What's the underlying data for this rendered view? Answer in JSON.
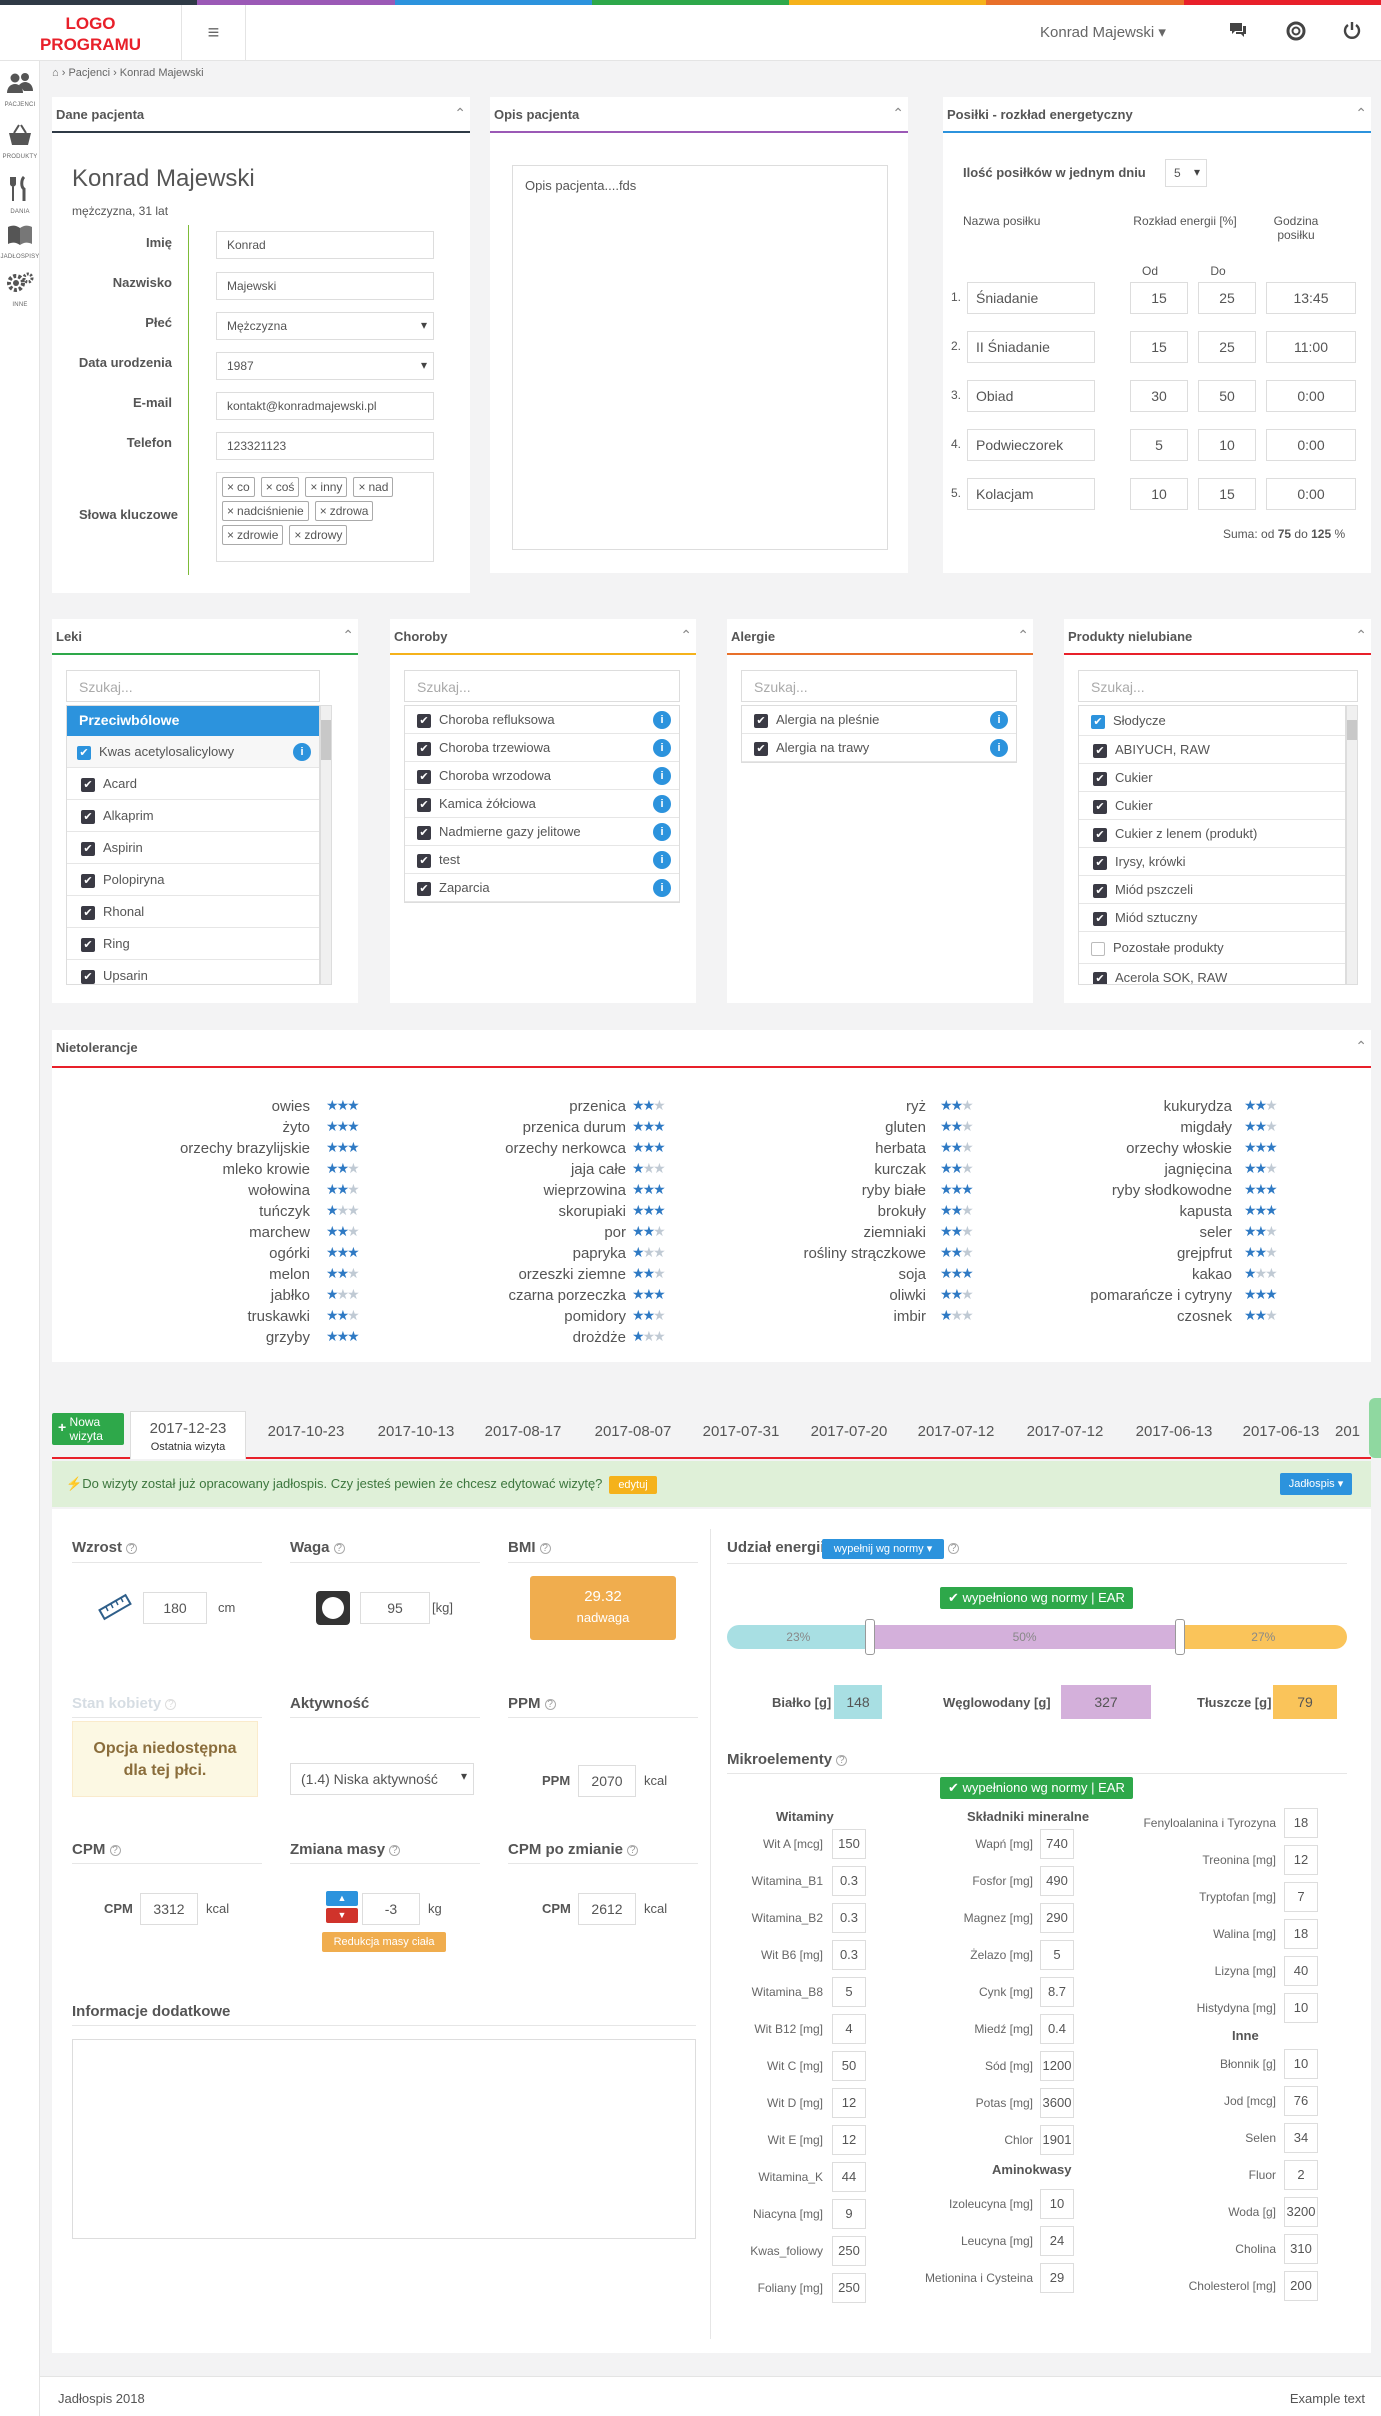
{
  "header": {
    "logo": "LOGO PROGRAMU",
    "user": "Konrad Majewski"
  },
  "sidebar": [
    {
      "label": "PACJENCI",
      "icon": "users-icon"
    },
    {
      "label": "PRODUKTY",
      "icon": "basket-icon"
    },
    {
      "label": "DANIA",
      "icon": "cutlery-icon"
    },
    {
      "label": "JADŁOSPISY",
      "icon": "book-icon"
    },
    {
      "label": "INNE",
      "icon": "gears-icon"
    }
  ],
  "breadcrumb": {
    "home_icon": "home-icon",
    "items": [
      "Pacjenci",
      "Konrad Majewski"
    ]
  },
  "patient": {
    "title": "Dane pacjenta",
    "name": "Konrad Majewski",
    "sub": "mężczyzna, 31 lat",
    "fields": [
      {
        "label": "Imię",
        "value": "Konrad"
      },
      {
        "label": "Nazwisko",
        "value": "Majewski"
      },
      {
        "label": "Płeć",
        "value": "Mężczyzna"
      },
      {
        "label": "Data urodzenia",
        "value": "1987"
      },
      {
        "label": "E-mail",
        "value": "kontakt@konradmajewski.pl"
      },
      {
        "label": "Telefon",
        "value": "123321123"
      }
    ],
    "kw_label": "Słowa kluczowe",
    "keywords": [
      "co",
      "coś",
      "inny",
      "nad",
      "nadciśnienie",
      "zdrowa",
      "zdrowie",
      "zdrowy"
    ]
  },
  "desc": {
    "title": "Opis pacjenta",
    "text": "Opis pacjenta....fds"
  },
  "meals": {
    "title": "Posiłki - rozkład energetyczny",
    "count_label": "Ilość posiłków w jednym dniu",
    "count": "5",
    "h_name": "Nazwa posiłku",
    "h_dist": "Rozkład energii [%]",
    "h_time": "Godzina posiłku",
    "h_from": "Od",
    "h_to": "Do",
    "rows": [
      {
        "n": "1.",
        "name": "Śniadanie",
        "from": "15",
        "to": "25",
        "time": "13:45"
      },
      {
        "n": "2.",
        "name": "II Śniadanie",
        "from": "15",
        "to": "25",
        "time": "11:00"
      },
      {
        "n": "3.",
        "name": "Obiad",
        "from": "30",
        "to": "50",
        "time": "0:00"
      },
      {
        "n": "4.",
        "name": "Podwieczorek",
        "from": "5",
        "to": "10",
        "time": "0:00"
      },
      {
        "n": "5.",
        "name": "Kolacjam",
        "from": "10",
        "to": "15",
        "time": "0:00"
      }
    ],
    "sum_prefix": "Suma: od",
    "sum_from": "75",
    "sum_mid": "do",
    "sum_to": "125",
    "sum_unit": "%"
  },
  "leki": {
    "title": "Leki",
    "search": "Szukaj...",
    "group": "Przeciwbólowe",
    "items": [
      "Kwas acetylosalicylowy",
      "Acard",
      "Alkaprim",
      "Aspirin",
      "Polopiryna",
      "Rhonal",
      "Ring",
      "Upsarin"
    ]
  },
  "choroby": {
    "title": "Choroby",
    "search": "Szukaj...",
    "items": [
      "Choroba refluksowa",
      "Choroba trzewiowa",
      "Choroba wrzodowa",
      "Kamica żółciowa",
      "Nadmierne gazy jelitowe",
      "test",
      "Zaparcia"
    ]
  },
  "alergie": {
    "title": "Alergie",
    "search": "Szukaj...",
    "items": [
      "Alergia na pleśnie",
      "Alergia na trawy"
    ]
  },
  "nielubiane": {
    "title": "Produkty nielubiane",
    "search": "Szukaj...",
    "group": "Słodycze",
    "items": [
      "ABIYUCH, RAW",
      "Cukier",
      "Cukier",
      "Cukier z lenem (produkt)",
      "Irysy, krówki",
      "Miód pszczeli",
      "Miód sztuczny"
    ],
    "group2": "Pozostałe produkty",
    "item2": "Acerola SOK, RAW"
  },
  "nietolerancje": {
    "title": "Nietolerancje",
    "cols": [
      [
        [
          "owies",
          3
        ],
        [
          "żyto",
          3
        ],
        [
          "orzechy brazylijskie",
          3
        ],
        [
          "mleko krowie",
          2
        ],
        [
          "wołowina",
          2
        ],
        [
          "tuńczyk",
          1
        ],
        [
          "marchew",
          2
        ],
        [
          "ogórki",
          3
        ],
        [
          "melon",
          2
        ],
        [
          "jabłko",
          1
        ],
        [
          "truskawki",
          2
        ],
        [
          "grzyby",
          3
        ]
      ],
      [
        [
          "przenica",
          2
        ],
        [
          "przenica durum",
          3
        ],
        [
          "orzechy nerkowca",
          3
        ],
        [
          "jaja całe",
          1
        ],
        [
          "wieprzowina",
          3
        ],
        [
          "skorupiaki",
          3
        ],
        [
          "por",
          2
        ],
        [
          "papryka",
          1
        ],
        [
          "orzeszki ziemne",
          2
        ],
        [
          "czarna porzeczka",
          3
        ],
        [
          "pomidory",
          2
        ],
        [
          "drożdże",
          1
        ]
      ],
      [
        [
          "ryż",
          2
        ],
        [
          "gluten",
          2
        ],
        [
          "herbata",
          2
        ],
        [
          "kurczak",
          2
        ],
        [
          "ryby białe",
          3
        ],
        [
          "brokuły",
          2
        ],
        [
          "ziemniaki",
          2
        ],
        [
          "rośliny strączkowe",
          2
        ],
        [
          "soja",
          3
        ],
        [
          "oliwki",
          2
        ],
        [
          "imbir",
          1
        ]
      ],
      [
        [
          "kukurydza",
          2
        ],
        [
          "migdały",
          2
        ],
        [
          "orzechy włoskie",
          3
        ],
        [
          "jagnięcina",
          2
        ],
        [
          "ryby słodkowodne",
          3
        ],
        [
          "kapusta",
          3
        ],
        [
          "seler",
          2
        ],
        [
          "grejpfrut",
          2
        ],
        [
          "kakao",
          1
        ],
        [
          "pomarańcze i cytryny",
          3
        ],
        [
          "czosnek",
          2
        ]
      ]
    ]
  },
  "visits": {
    "new_label": "Nowa wizyta",
    "active_date": "2017-12-23",
    "active_sub": "Ostatnia wizyta",
    "dates": [
      "2017-10-23",
      "2017-10-13",
      "2017-08-17",
      "2017-08-07",
      "2017-07-31",
      "2017-07-20",
      "2017-07-12",
      "2017-07-12",
      "2017-06-13",
      "2017-06-13",
      "201"
    ]
  },
  "alert": {
    "text": "Do wizyty został już opracowany jadłospis. Czy jesteś pewien że chcesz edytować wizytę?",
    "edit": "edytuj",
    "menu": "Jadłospis"
  },
  "vitals": {
    "wzrost": "Wzrost",
    "wzrost_val": "180",
    "wzrost_unit": "cm",
    "waga": "Waga",
    "waga_val": "95",
    "waga_unit": "[kg]",
    "bmi": "BMI",
    "bmi_val": "29.32",
    "bmi_sub": "nadwaga",
    "stan": "Stan kobiety",
    "stan_msg": "Opcja niedostępna dla tej płci.",
    "aktywnosc": "Aktywność",
    "aktywnosc_val": "(1.4) Niska aktywność",
    "ppm": "PPM",
    "ppm_val": "2070",
    "ppm_unit": "kcal",
    "cpm": "CPM",
    "cpm_val": "3312",
    "cpm_unit": "kcal",
    "zmiana": "Zmiana masy",
    "zmiana_val": "-3",
    "zmiana_unit": "kg",
    "zmiana_btn": "Redukcja masy ciała",
    "cpm_po": "CPM po zmianie",
    "cpm_po_val": "2612",
    "info": "Informacje dodatkowe"
  },
  "energy": {
    "title": "Udział energii",
    "fill_btn": "wypełnij wg normy",
    "badge": "wypełniono wg normy",
    "badge_tag": "EAR",
    "seg": [
      "23%",
      "50%",
      "27%"
    ],
    "seg_vals": [
      23,
      50,
      27
    ],
    "bialko": "Białko [g]",
    "bialko_val": "148",
    "wegle": "Węglowodany [g]",
    "wegle_val": "327",
    "tluszcze": "Tłuszcze [g]",
    "tluszcze_val": "79"
  },
  "micro": {
    "title": "Mikroelementy",
    "badge": "wypełniono wg normy",
    "badge_tag": "EAR",
    "wit_title": "Witaminy",
    "min_title": "Składniki mineralne",
    "amino_title": "Aminokwasy",
    "inne_title": "Inne",
    "wit": [
      [
        "Wit A [mcg]",
        "150"
      ],
      [
        "Witamina_B1",
        "0.3"
      ],
      [
        "Witamina_B2",
        "0.3"
      ],
      [
        "Wit B6 [mg]",
        "0.3"
      ],
      [
        "Witamina_B8",
        "5"
      ],
      [
        "Wit B12 [mg]",
        "4"
      ],
      [
        "Wit C [mg]",
        "50"
      ],
      [
        "Wit D [mg]",
        "12"
      ],
      [
        "Wit E [mg]",
        "12"
      ],
      [
        "Witamina_K",
        "44"
      ],
      [
        "Niacyna [mg]",
        "9"
      ],
      [
        "Kwas_foliowy",
        "250"
      ],
      [
        "Foliany [mg]",
        "250"
      ]
    ],
    "min": [
      [
        "Wapń [mg]",
        "740"
      ],
      [
        "Fosfor [mg]",
        "490"
      ],
      [
        "Magnez [mg]",
        "290"
      ],
      [
        "Żelazo [mg]",
        "5"
      ],
      [
        "Cynk [mg]",
        "8.7"
      ],
      [
        "Miedź [mg]",
        "0.4"
      ],
      [
        "Sód [mg]",
        "1200"
      ],
      [
        "Potas [mg]",
        "3600"
      ],
      [
        "Chlor",
        "1901"
      ]
    ],
    "amino": [
      [
        "Izoleucyna [mg]",
        "10"
      ],
      [
        "Leucyna [mg]",
        "24"
      ],
      [
        "Metionina i Cysteina",
        "29"
      ]
    ],
    "amino2": [
      [
        "Fenyloalanina i Tyrozyna",
        "18"
      ],
      [
        "Treonina [mg]",
        "12"
      ],
      [
        "Tryptofan [mg]",
        "7"
      ],
      [
        "Walina [mg]",
        "18"
      ],
      [
        "Lizyna [mg]",
        "40"
      ],
      [
        "Histydyna [mg]",
        "10"
      ]
    ],
    "inne": [
      [
        "Błonnik [g]",
        "10"
      ],
      [
        "Jod [mcg]",
        "76"
      ],
      [
        "Selen",
        "34"
      ],
      [
        "Fluor",
        "2"
      ],
      [
        "Woda [g]",
        "3200"
      ],
      [
        "Cholina",
        "310"
      ],
      [
        "Cholesterol [mg]",
        "200"
      ]
    ]
  },
  "footer": {
    "left": "Jadłospis 2018",
    "right": "Example text"
  }
}
